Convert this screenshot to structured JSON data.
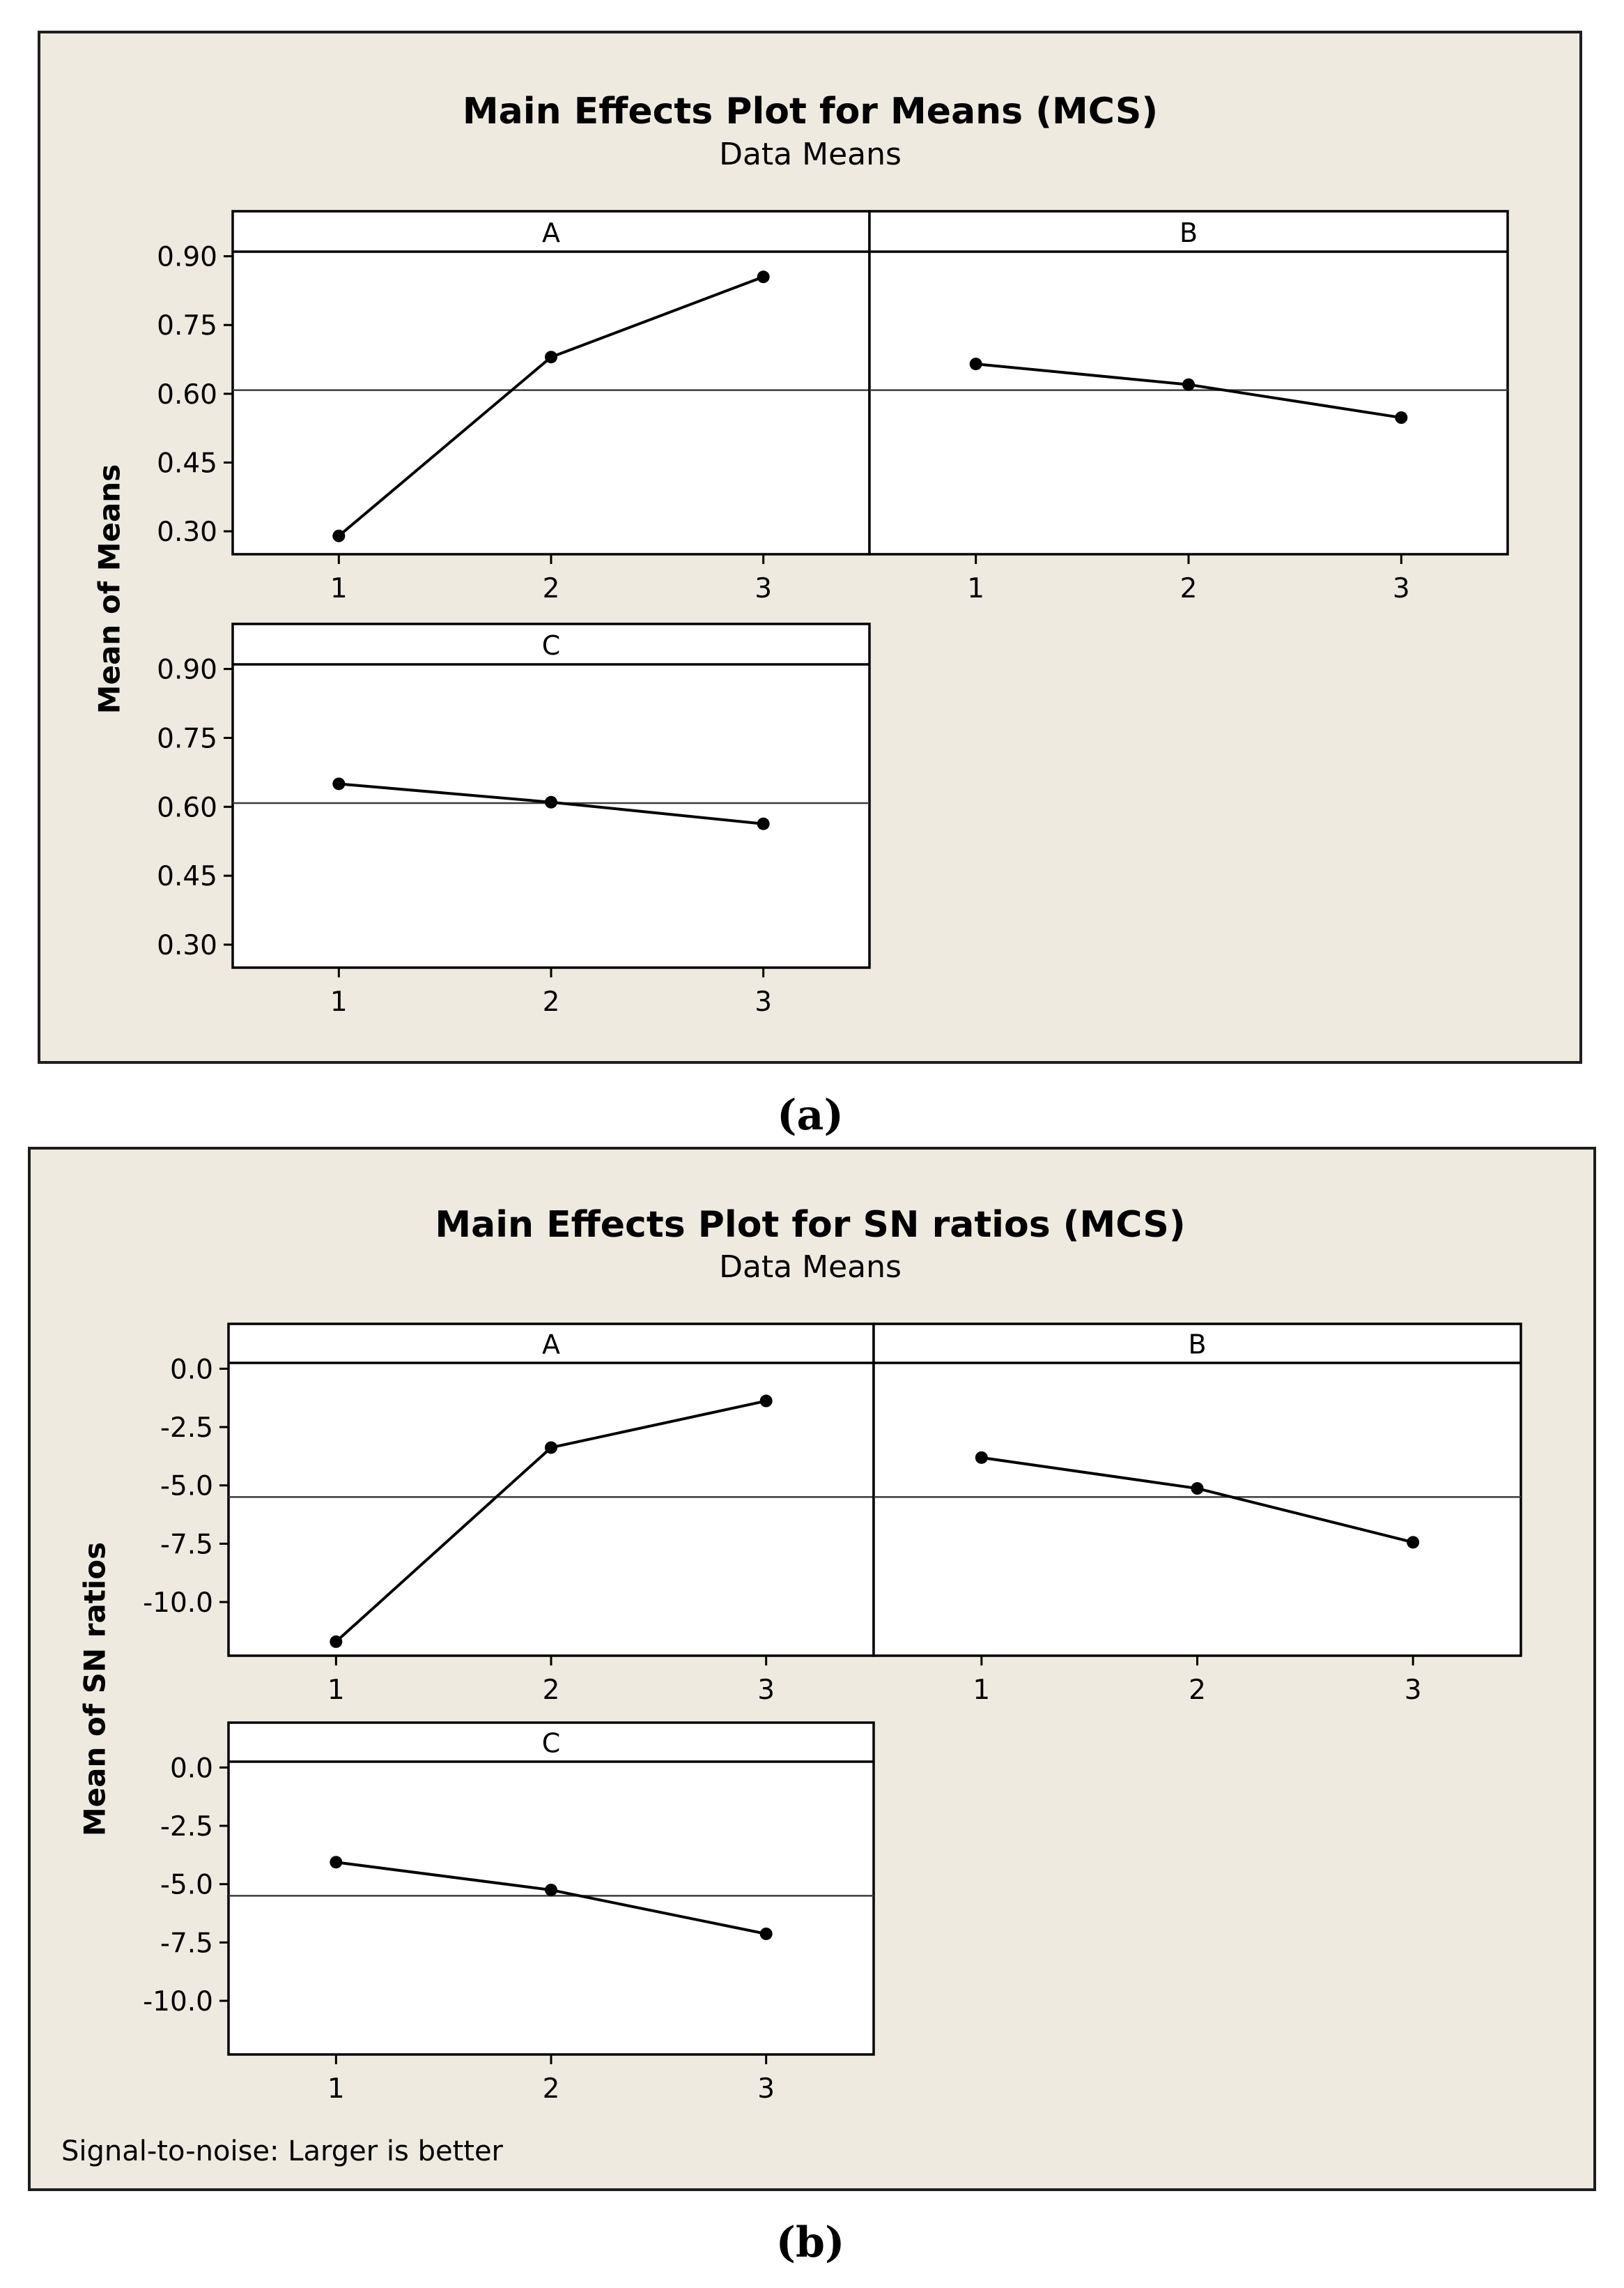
{
  "colors": {
    "frame_background": "#EEEAE0",
    "frame_border": "#1E1E1E",
    "panel_background": "#FFFFFF",
    "axis": "#000000",
    "series": "#000000",
    "reference_line": "#3C3C3C"
  },
  "chart_data": [
    {
      "type": "line",
      "title": "Main Effects Plot for Means (MCS)",
      "subtitle": "Data Means",
      "ylabel": "Mean of Means",
      "ylim": [
        0.25,
        0.91
      ],
      "ytick_labels": [
        "0.90",
        "0.75",
        "0.60",
        "0.45",
        "0.30"
      ],
      "reference_mean": 0.608,
      "panels": [
        {
          "name": "A",
          "categories": [
            "1",
            "2",
            "3"
          ],
          "values": [
            0.29,
            0.68,
            0.855
          ]
        },
        {
          "name": "B",
          "categories": [
            "1",
            "2",
            "3"
          ],
          "values": [
            0.665,
            0.62,
            0.548
          ]
        },
        {
          "name": "C",
          "categories": [
            "1",
            "2",
            "3"
          ],
          "values": [
            0.65,
            0.61,
            0.563
          ]
        }
      ],
      "caption": "(a)"
    },
    {
      "type": "line",
      "title": "Main Effects Plot for SN ratios (MCS)",
      "subtitle": "Data Means",
      "ylabel": "Mean of SN ratios",
      "ylim": [
        -12.3,
        0.25
      ],
      "ytick_labels": [
        "0.0",
        "-2.5",
        "-5.0",
        "-7.5",
        "-10.0"
      ],
      "reference_mean": -5.5,
      "panels": [
        {
          "name": "A",
          "categories": [
            "1",
            "2",
            "3"
          ],
          "values": [
            -11.7,
            -3.38,
            -1.38
          ]
        },
        {
          "name": "B",
          "categories": [
            "1",
            "2",
            "3"
          ],
          "values": [
            -3.81,
            -5.13,
            -7.44
          ]
        },
        {
          "name": "C",
          "categories": [
            "1",
            "2",
            "3"
          ],
          "values": [
            -4.06,
            -5.25,
            -7.13
          ]
        }
      ],
      "footnote": "Signal-to-noise: Larger is better",
      "caption": "(b)"
    }
  ]
}
